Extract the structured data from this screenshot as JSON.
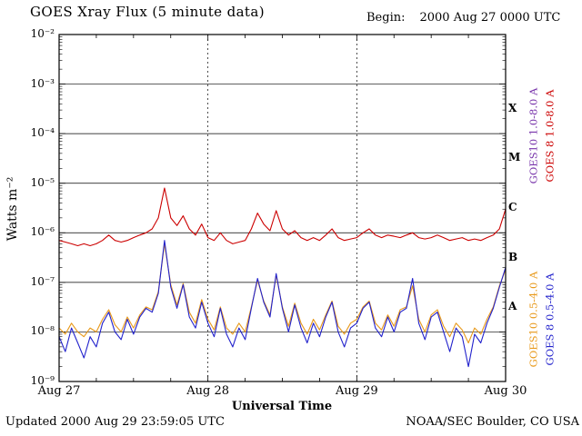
{
  "header": {
    "title": "GOES Xray Flux (5 minute data)",
    "begin_label": "Begin:",
    "begin_value": "2000 Aug 27 0000 UTC"
  },
  "footer": {
    "updated": "Updated 2000 Aug 29 23:59:05 UTC",
    "source": "NOAA/SEC Boulder, CO USA"
  },
  "flare_classes": [
    {
      "letter": "X",
      "exp": -3.5
    },
    {
      "letter": "M",
      "exp": -4.5
    },
    {
      "letter": "C",
      "exp": -5.5
    },
    {
      "letter": "B",
      "exp": -6.5
    },
    {
      "letter": "A",
      "exp": -7.5
    }
  ],
  "legend": [
    {
      "label": "GOES10 1.0-8.0 A",
      "color": "#7733aa",
      "group": "long",
      "col": 0
    },
    {
      "label": "GOES 8 1.0-8.0 A",
      "color": "#cc0000",
      "group": "long",
      "col": 1
    },
    {
      "label": "GOES10 0.5-4.0 A",
      "color": "#e8991a",
      "group": "short",
      "col": 0
    },
    {
      "label": "GOES 8 0.5-4.0 A",
      "color": "#2222cc",
      "group": "short",
      "col": 1
    }
  ],
  "chart_data": {
    "type": "line",
    "title": "GOES Xray Flux (5 minute data)",
    "xlabel": "Universal Time",
    "ylabel": "Watts m⁻²",
    "x_unit": "hours since 2000 Aug 27 0000 UTC",
    "xlim": [
      0,
      72
    ],
    "ylim": [
      1e-09,
      0.01
    ],
    "log_y": true,
    "grid": {
      "h_exponents": [
        -3,
        -4,
        -5,
        -6,
        -7,
        -8
      ],
      "v_hours": [
        24,
        48
      ]
    },
    "x_ticks": [
      {
        "t": 0,
        "label": "Aug 27"
      },
      {
        "t": 24,
        "label": "Aug 28"
      },
      {
        "t": 48,
        "label": "Aug 29"
      },
      {
        "t": 72,
        "label": "Aug 30"
      }
    ],
    "y_ticks": [
      {
        "exp": -2,
        "label": "10⁻²"
      },
      {
        "exp": -3,
        "label": "10⁻³"
      },
      {
        "exp": -4,
        "label": "10⁻⁴"
      },
      {
        "exp": -5,
        "label": "10⁻⁵"
      },
      {
        "exp": -6,
        "label": "10⁻⁶"
      },
      {
        "exp": -7,
        "label": "10⁻⁷"
      },
      {
        "exp": -8,
        "label": "10⁻⁸"
      },
      {
        "exp": -9,
        "label": "10⁻⁹"
      }
    ],
    "x_hours": [
      0,
      1,
      2,
      3,
      4,
      5,
      6,
      7,
      8,
      9,
      10,
      11,
      12,
      13,
      14,
      15,
      16,
      17,
      18,
      19,
      20,
      21,
      22,
      23,
      24,
      25,
      26,
      27,
      28,
      29,
      30,
      31,
      32,
      33,
      34,
      35,
      36,
      37,
      38,
      39,
      40,
      41,
      42,
      43,
      44,
      45,
      46,
      47,
      48,
      49,
      50,
      51,
      52,
      53,
      54,
      55,
      56,
      57,
      58,
      59,
      60,
      61,
      62,
      63,
      64,
      65,
      66,
      67,
      68,
      69,
      70,
      71,
      72
    ],
    "series": [
      {
        "name": "GOES10 0.5-4.0 A",
        "data_name": "goes10-short-series",
        "color": "#e8991a",
        "values": [
          1.2e-08,
          9e-09,
          1.5e-08,
          1e-08,
          8e-09,
          1.2e-08,
          1e-08,
          1.8e-08,
          2.8e-08,
          1.4e-08,
          1e-08,
          2e-08,
          1.2e-08,
          2.2e-08,
          3.2e-08,
          2.8e-08,
          6.5e-08,
          6e-07,
          9e-08,
          3.5e-08,
          9.5e-08,
          2.5e-08,
          1.5e-08,
          4.5e-08,
          1.8e-08,
          1.1e-08,
          3.2e-08,
          1.2e-08,
          9e-09,
          1.5e-08,
          1e-08,
          3.2e-08,
          1.1e-07,
          4.2e-08,
          2.2e-08,
          1.4e-07,
          3.2e-08,
          1.3e-08,
          3.8e-08,
          1.5e-08,
          9e-09,
          1.8e-08,
          1.1e-08,
          2.2e-08,
          4.2e-08,
          1.3e-08,
          9e-09,
          1.5e-08,
          1.8e-08,
          3.2e-08,
          4.2e-08,
          1.5e-08,
          1.1e-08,
          2.2e-08,
          1.3e-08,
          2.8e-08,
          3.2e-08,
          8.5e-08,
          1.8e-08,
          1e-08,
          2.2e-08,
          2.8e-08,
          1.3e-08,
          8e-09,
          1.5e-08,
          1.1e-08,
          6e-09,
          1.2e-08,
          9e-09,
          1.8e-08,
          3.2e-08,
          8.5e-08,
          1.8e-07
        ]
      },
      {
        "name": "GOES 8 0.5-4.0 A",
        "data_name": "goes8-short-series",
        "color": "#2222cc",
        "values": [
          8e-09,
          4e-09,
          1.2e-08,
          6e-09,
          3e-09,
          8e-09,
          5e-09,
          1.5e-08,
          2.5e-08,
          1e-08,
          7e-09,
          1.8e-08,
          9e-09,
          2e-08,
          3e-08,
          2.5e-08,
          6e-08,
          7e-07,
          8e-08,
          3e-08,
          9e-08,
          2e-08,
          1.2e-08,
          4e-08,
          1.5e-08,
          8e-09,
          3e-08,
          9e-09,
          5e-09,
          1.2e-08,
          7e-09,
          3e-08,
          1.2e-07,
          4e-08,
          2e-08,
          1.5e-07,
          3e-08,
          1e-08,
          3.5e-08,
          1.2e-08,
          6e-09,
          1.5e-08,
          8e-09,
          2e-08,
          4e-08,
          1e-08,
          5e-09,
          1.2e-08,
          1.5e-08,
          3e-08,
          4e-08,
          1.2e-08,
          8e-09,
          2e-08,
          1e-08,
          2.5e-08,
          3e-08,
          1.2e-07,
          1.5e-08,
          7e-09,
          2e-08,
          2.5e-08,
          1e-08,
          4e-09,
          1.2e-08,
          8e-09,
          2e-09,
          9e-09,
          6e-09,
          1.5e-08,
          3e-08,
          8e-08,
          2e-07
        ]
      },
      {
        "name": "GOES 8 1.0-8.0 A",
        "data_name": "goes8-long-series",
        "color": "#cc0000",
        "values": [
          7e-07,
          6.5e-07,
          6e-07,
          5.5e-07,
          6e-07,
          5.5e-07,
          6e-07,
          7e-07,
          9e-07,
          7e-07,
          6.5e-07,
          7e-07,
          8e-07,
          9e-07,
          1e-06,
          1.2e-06,
          2e-06,
          8e-06,
          2e-06,
          1.4e-06,
          2.2e-06,
          1.2e-06,
          9e-07,
          1.5e-06,
          8e-07,
          7e-07,
          1e-06,
          7e-07,
          6e-07,
          6.5e-07,
          7e-07,
          1.2e-06,
          2.5e-06,
          1.5e-06,
          1.1e-06,
          2.8e-06,
          1.2e-06,
          9e-07,
          1.1e-06,
          8e-07,
          7e-07,
          8e-07,
          7e-07,
          9e-07,
          1.2e-06,
          8e-07,
          7e-07,
          7.5e-07,
          8e-07,
          1e-06,
          1.2e-06,
          9e-07,
          8e-07,
          9e-07,
          8.5e-07,
          8e-07,
          9e-07,
          1e-06,
          8e-07,
          7.5e-07,
          8e-07,
          9e-07,
          8e-07,
          7e-07,
          7.5e-07,
          8e-07,
          7e-07,
          7.5e-07,
          7e-07,
          8e-07,
          9e-07,
          1.2e-06,
          3e-06
        ]
      }
    ]
  }
}
